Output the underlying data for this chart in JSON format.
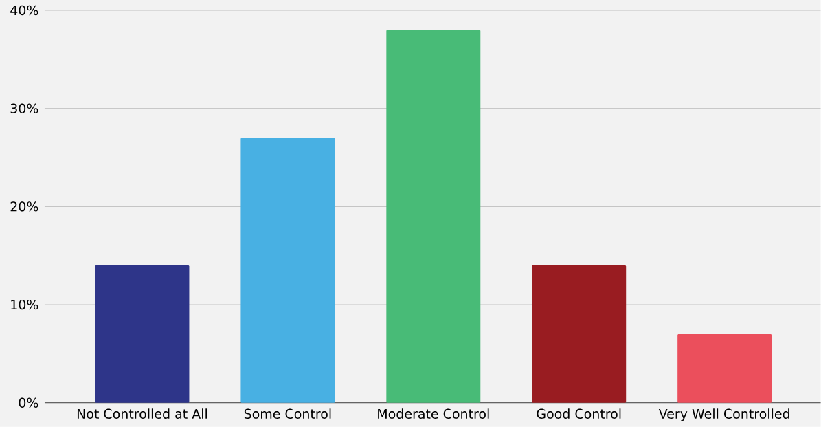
{
  "chart_data": {
    "type": "bar",
    "categories": [
      "Not Controlled at All",
      "Some Control",
      "Moderate Control",
      "Good Control",
      "Very Well Controlled"
    ],
    "values": [
      14,
      27,
      38,
      14,
      7
    ],
    "colors": [
      "#2e3589",
      "#48b0e3",
      "#48bb77",
      "#991c21",
      "#eb4f5c"
    ],
    "ylim": [
      0,
      40
    ],
    "yticks": [
      {
        "value": 0,
        "label": "0%"
      },
      {
        "value": 10,
        "label": "10%"
      },
      {
        "value": 20,
        "label": "20%"
      },
      {
        "value": 30,
        "label": "30%"
      },
      {
        "value": 40,
        "label": "40%"
      }
    ],
    "grid": "y"
  }
}
